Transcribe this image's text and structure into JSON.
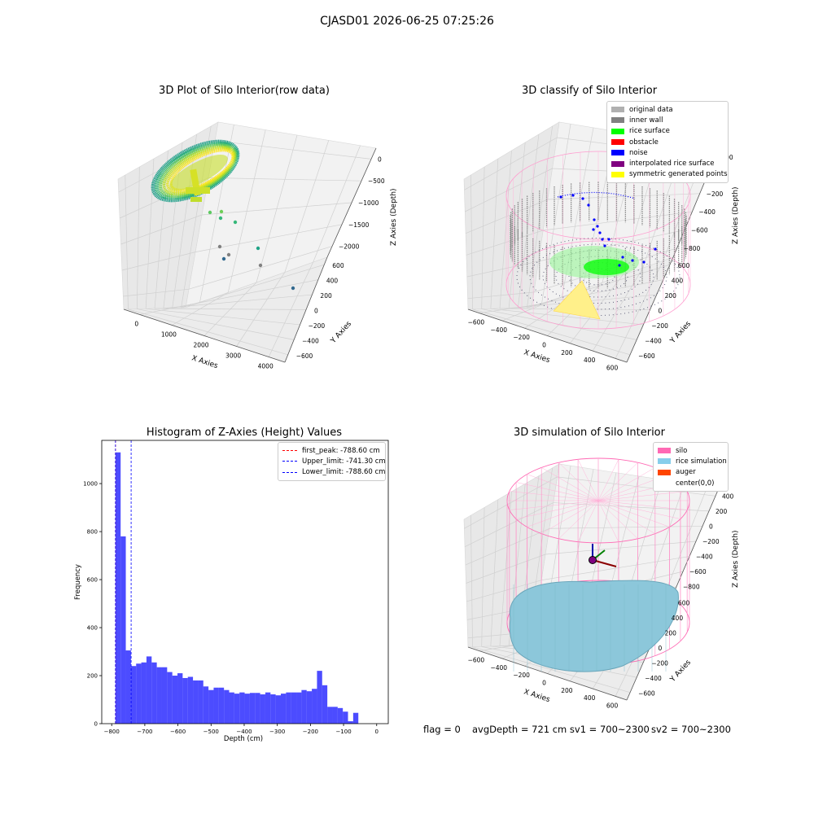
{
  "suptitle": "CJASD01 2026-06-25 07:25:26",
  "panels": {
    "raw": {
      "title": "3D Plot of Silo Interior(row data)",
      "xlabel": "X Axies",
      "ylabel": "Y Axies",
      "zlabel": "Z Axies (Depth)",
      "xticks": [
        "0",
        "1000",
        "2000",
        "3000",
        "4000"
      ],
      "yticks": [
        "600",
        "400",
        "200",
        "0",
        "−200",
        "−400",
        "−600"
      ],
      "zticks": [
        "0",
        "−500",
        "−1000",
        "−1500",
        "−2000"
      ]
    },
    "classify": {
      "title": "3D classify of Silo Interior",
      "xlabel": "X Axies",
      "ylabel": "Y Axies",
      "zlabel": "Z Axies (Depth)",
      "xticks": [
        "−600",
        "−400",
        "−200",
        "0",
        "200",
        "400",
        "600"
      ],
      "yticks": [
        "600",
        "400",
        "200",
        "0",
        "−200",
        "−400",
        "−600"
      ],
      "zticks": [
        "200",
        "0",
        "−200",
        "−400",
        "−600",
        "−800"
      ],
      "legend": [
        {
          "label": "original data",
          "color": "#b0b0b0"
        },
        {
          "label": "inner wall",
          "color": "#808080"
        },
        {
          "label": "rice surface",
          "color": "#00ff00"
        },
        {
          "label": "obstacle",
          "color": "#ff0000"
        },
        {
          "label": "noise",
          "color": "#0000ff"
        },
        {
          "label": "interpolated rice surface",
          "color": "#800080"
        },
        {
          "label": "symmetric generated points",
          "color": "#ffff00"
        }
      ]
    },
    "simulation": {
      "title": "3D simulation of Silo Interior",
      "xlabel": "X Axies",
      "ylabel": "Y Axies",
      "zlabel": "Z Axies (Depth)",
      "xticks": [
        "−600",
        "−400",
        "−200",
        "0",
        "200",
        "400",
        "600"
      ],
      "yticks": [
        "600",
        "400",
        "200",
        "0",
        "−200",
        "−400",
        "−600"
      ],
      "zticks": [
        "400",
        "200",
        "0",
        "−200",
        "−400",
        "−600",
        "−800"
      ],
      "legend": [
        {
          "label": "silo",
          "color": "#ff69b4"
        },
        {
          "label": "rice simulation",
          "color": "#87ceeb"
        },
        {
          "label": "auger",
          "color": "#ff4500"
        },
        {
          "label": "center(0,0)",
          "color": "#ffffff"
        }
      ]
    }
  },
  "status": {
    "flag": "flag = 0",
    "avg": "avgDepth = 721 cm  sv1 = 700~2300",
    "sv2": "sv2 = 700~2300"
  },
  "chart_data": {
    "type": "bar",
    "title": "Histogram of Z-Axies (Height) Values",
    "xlabel": "Depth (cm)",
    "ylabel": "Frequency",
    "xlim": [
      -830,
      35
    ],
    "ylim": [
      0,
      1180
    ],
    "xticks": [
      -800,
      -700,
      -600,
      -500,
      -400,
      -300,
      -200,
      -100,
      0
    ],
    "yticks": [
      0,
      200,
      400,
      600,
      800,
      1000
    ],
    "bin_width": 15.6,
    "bin_start": -788.6,
    "values": [
      1130,
      780,
      305,
      240,
      250,
      255,
      280,
      255,
      235,
      235,
      215,
      200,
      210,
      190,
      195,
      180,
      180,
      155,
      140,
      150,
      150,
      140,
      130,
      125,
      130,
      125,
      128,
      128,
      122,
      130,
      122,
      118,
      125,
      130,
      130,
      130,
      140,
      135,
      145,
      220,
      160,
      70,
      70,
      65,
      50,
      10,
      45
    ],
    "bar_color": "#0000ff",
    "lines": [
      {
        "label": "first_peak: -788.60 cm",
        "x": -788.6,
        "color": "#ff0000"
      },
      {
        "label": "Upper_limit: -741.30 cm",
        "x": -741.3,
        "color": "#0000ff"
      },
      {
        "label": "Lower_limit: -788.60 cm",
        "x": -788.6,
        "color": "#0000ff"
      }
    ]
  }
}
